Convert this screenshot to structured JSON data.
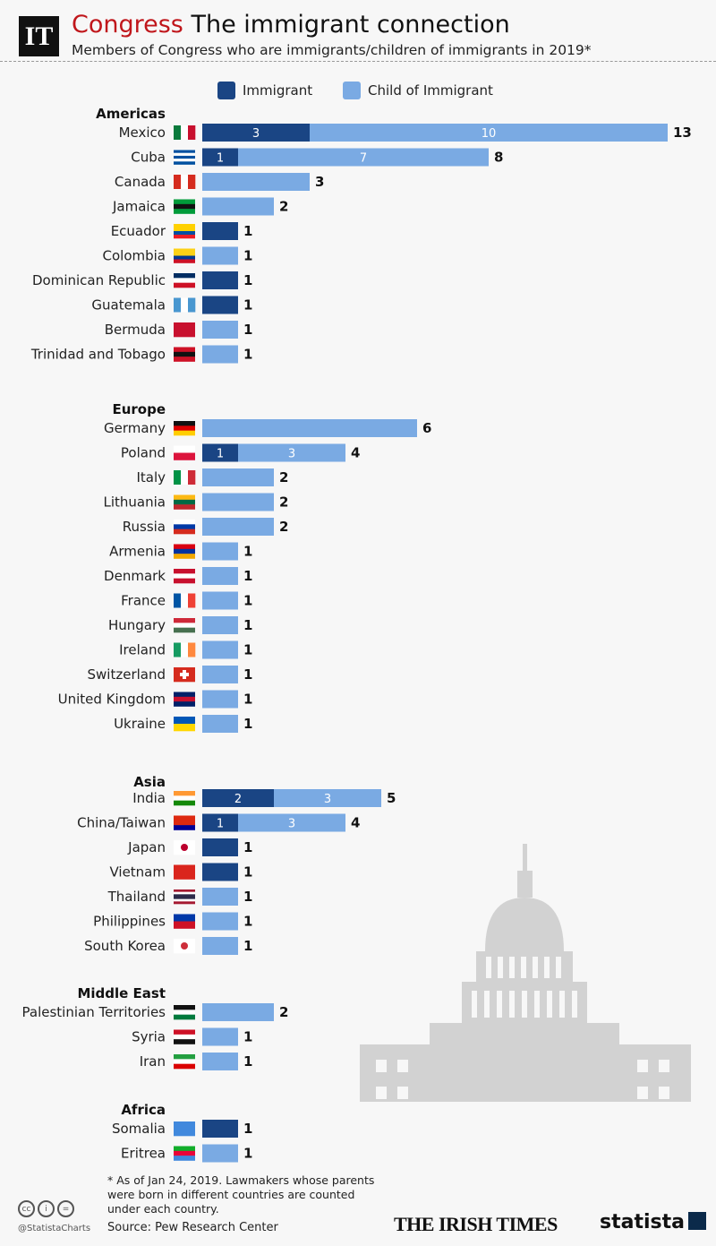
{
  "header": {
    "logo_text": "IT",
    "title_accent": "Congress",
    "title": "The immigrant connection",
    "subtitle": "Members of Congress who are immigrants/children of immigrants in 2019*"
  },
  "colors": {
    "immigrant": "#1a4584",
    "child": "#7aaae3",
    "accent": "#c0161b",
    "capitol": "#d2d2d2"
  },
  "chart_data": {
    "type": "bar",
    "orientation": "horizontal",
    "stacked": true,
    "legend": [
      "Immigrant",
      "Child of Immigrant"
    ],
    "legend_position": "top",
    "groups": [
      {
        "name": "Americas",
        "rows": [
          {
            "country": "Mexico",
            "flag": "mexico-flag-icon",
            "immigrant": 3,
            "child": 10,
            "total": 13
          },
          {
            "country": "Cuba",
            "flag": "cuba-flag-icon",
            "immigrant": 1,
            "child": 7,
            "total": 8
          },
          {
            "country": "Canada",
            "flag": "canada-flag-icon",
            "immigrant": 0,
            "child": 3,
            "total": 3
          },
          {
            "country": "Jamaica",
            "flag": "jamaica-flag-icon",
            "immigrant": 0,
            "child": 2,
            "total": 2
          },
          {
            "country": "Ecuador",
            "flag": "ecuador-flag-icon",
            "immigrant": 1,
            "child": 0,
            "total": 1
          },
          {
            "country": "Colombia",
            "flag": "colombia-flag-icon",
            "immigrant": 0,
            "child": 1,
            "total": 1
          },
          {
            "country": "Dominican Republic",
            "flag": "dominican-republic-flag-icon",
            "immigrant": 1,
            "child": 0,
            "total": 1
          },
          {
            "country": "Guatemala",
            "flag": "guatemala-flag-icon",
            "immigrant": 1,
            "child": 0,
            "total": 1
          },
          {
            "country": "Bermuda",
            "flag": "bermuda-flag-icon",
            "immigrant": 0,
            "child": 1,
            "total": 1
          },
          {
            "country": "Trinidad and Tobago",
            "flag": "trinidad-flag-icon",
            "immigrant": 0,
            "child": 1,
            "total": 1
          }
        ]
      },
      {
        "name": "Europe",
        "rows": [
          {
            "country": "Germany",
            "flag": "germany-flag-icon",
            "immigrant": 0,
            "child": 6,
            "total": 6
          },
          {
            "country": "Poland",
            "flag": "poland-flag-icon",
            "immigrant": 1,
            "child": 3,
            "total": 4
          },
          {
            "country": "Italy",
            "flag": "italy-flag-icon",
            "immigrant": 0,
            "child": 2,
            "total": 2
          },
          {
            "country": "Lithuania",
            "flag": "lithuania-flag-icon",
            "immigrant": 0,
            "child": 2,
            "total": 2
          },
          {
            "country": "Russia",
            "flag": "russia-flag-icon",
            "immigrant": 0,
            "child": 2,
            "total": 2
          },
          {
            "country": "Armenia",
            "flag": "armenia-flag-icon",
            "immigrant": 0,
            "child": 1,
            "total": 1
          },
          {
            "country": "Denmark",
            "flag": "denmark-flag-icon",
            "immigrant": 0,
            "child": 1,
            "total": 1
          },
          {
            "country": "France",
            "flag": "france-flag-icon",
            "immigrant": 0,
            "child": 1,
            "total": 1
          },
          {
            "country": "Hungary",
            "flag": "hungary-flag-icon",
            "immigrant": 0,
            "child": 1,
            "total": 1
          },
          {
            "country": "Ireland",
            "flag": "ireland-flag-icon",
            "immigrant": 0,
            "child": 1,
            "total": 1
          },
          {
            "country": "Switzerland",
            "flag": "switzerland-flag-icon",
            "immigrant": 0,
            "child": 1,
            "total": 1
          },
          {
            "country": "United Kingdom",
            "flag": "uk-flag-icon",
            "immigrant": 0,
            "child": 1,
            "total": 1
          },
          {
            "country": "Ukraine",
            "flag": "ukraine-flag-icon",
            "immigrant": 0,
            "child": 1,
            "total": 1
          }
        ]
      },
      {
        "name": "Asia",
        "rows": [
          {
            "country": "India",
            "flag": "india-flag-icon",
            "immigrant": 2,
            "child": 3,
            "total": 5
          },
          {
            "country": "China/Taiwan",
            "flag": "china-taiwan-flag-icon",
            "immigrant": 1,
            "child": 3,
            "total": 4
          },
          {
            "country": "Japan",
            "flag": "japan-flag-icon",
            "immigrant": 1,
            "child": 0,
            "total": 1
          },
          {
            "country": "Vietnam",
            "flag": "vietnam-flag-icon",
            "immigrant": 1,
            "child": 0,
            "total": 1
          },
          {
            "country": "Thailand",
            "flag": "thailand-flag-icon",
            "immigrant": 0,
            "child": 1,
            "total": 1
          },
          {
            "country": "Philippines",
            "flag": "philippines-flag-icon",
            "immigrant": 0,
            "child": 1,
            "total": 1
          },
          {
            "country": "South Korea",
            "flag": "south-korea-flag-icon",
            "immigrant": 0,
            "child": 1,
            "total": 1
          }
        ]
      },
      {
        "name": "Middle East",
        "rows": [
          {
            "country": "Palestinian Territories",
            "flag": "palestine-flag-icon",
            "immigrant": 0,
            "child": 2,
            "total": 2
          },
          {
            "country": "Syria",
            "flag": "syria-flag-icon",
            "immigrant": 0,
            "child": 1,
            "total": 1
          },
          {
            "country": "Iran",
            "flag": "iran-flag-icon",
            "immigrant": 0,
            "child": 1,
            "total": 1
          }
        ]
      },
      {
        "name": "Africa",
        "rows": [
          {
            "country": "Somalia",
            "flag": "somalia-flag-icon",
            "immigrant": 1,
            "child": 0,
            "total": 1
          },
          {
            "country": "Eritrea",
            "flag": "eritrea-flag-icon",
            "immigrant": 0,
            "child": 1,
            "total": 1
          }
        ]
      }
    ]
  },
  "footer": {
    "note": "* As of Jan 24, 2019. Lawmakers whose parents were born in different countries are counted under each country.",
    "source": "Source: Pew Research Center",
    "handle": "@StatistaCharts",
    "brand1": "THE IRISH TIMES",
    "brand2": "statista"
  }
}
